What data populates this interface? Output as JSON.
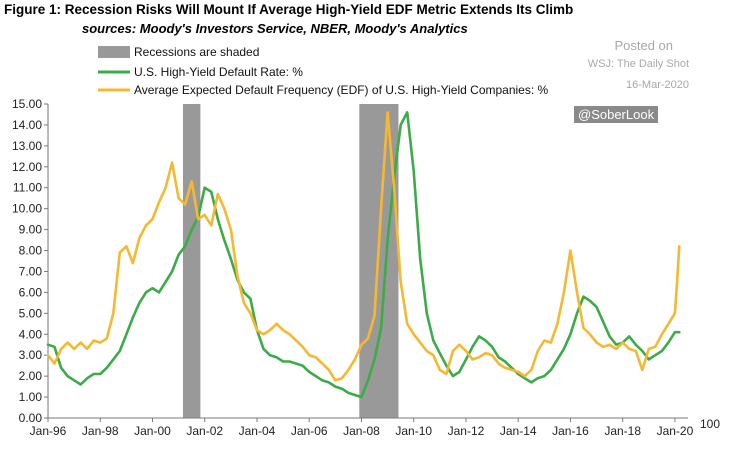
{
  "header": {
    "title": "Figure 1: Recession Risks Will Mount If Average High-Yield EDF Metric Extends Its Climb",
    "subtitle": "sources: Moody's Investors Service, NBER, Moody's Analytics"
  },
  "watermark": {
    "posted": "Posted on",
    "source": "WSJ: The Daily Shot",
    "date": "16-Mar-2020",
    "handle": "@SoberLook"
  },
  "chart_data": {
    "type": "line",
    "xlabel": "",
    "ylabel": "",
    "ylim": [
      0,
      15
    ],
    "y_ticks": [
      "0.00",
      "1.00",
      "2.00",
      "3.00",
      "4.00",
      "5.00",
      "6.00",
      "7.00",
      "8.00",
      "9.00",
      "10.00",
      "11.00",
      "12.00",
      "13.00",
      "14.00",
      "15.00"
    ],
    "x_ticks": [
      "Jan-96",
      "Jan-98",
      "Jan-00",
      "Jan-02",
      "Jan-04",
      "Jan-06",
      "Jan-08",
      "Jan-10",
      "Jan-12",
      "Jan-14",
      "Jan-16",
      "Jan-18",
      "Jan-20"
    ],
    "stray_label": "100",
    "grid": false,
    "legend": [
      {
        "label": "Recessions are shaded",
        "kind": "shade",
        "color": "#999999"
      },
      {
        "label": "U.S. High-Yield Default Rate: %",
        "kind": "line",
        "color": "#3cab48"
      },
      {
        "label": "Average Expected Default Frequency (EDF) of U.S. High-Yield Companies: %",
        "kind": "line",
        "color": "#f5b832"
      }
    ],
    "recessions": [
      {
        "start": "2001-03",
        "end": "2001-11"
      },
      {
        "start": "2007-12",
        "end": "2009-06"
      }
    ],
    "series": [
      {
        "name": "U.S. High-Yield Default Rate: %",
        "color": "#3cab48",
        "points": [
          [
            "1996-01",
            3.5
          ],
          [
            "1996-04",
            3.4
          ],
          [
            "1996-07",
            2.4
          ],
          [
            "1996-10",
            2.0
          ],
          [
            "1997-01",
            1.8
          ],
          [
            "1997-04",
            1.6
          ],
          [
            "1997-07",
            1.9
          ],
          [
            "1997-10",
            2.1
          ],
          [
            "1998-01",
            2.1
          ],
          [
            "1998-04",
            2.4
          ],
          [
            "1998-07",
            2.8
          ],
          [
            "1998-10",
            3.2
          ],
          [
            "1999-01",
            4.0
          ],
          [
            "1999-04",
            4.8
          ],
          [
            "1999-07",
            5.5
          ],
          [
            "1999-10",
            6.0
          ],
          [
            "2000-01",
            6.2
          ],
          [
            "2000-04",
            6.0
          ],
          [
            "2000-07",
            6.5
          ],
          [
            "2000-10",
            7.0
          ],
          [
            "2001-01",
            7.8
          ],
          [
            "2001-04",
            8.2
          ],
          [
            "2001-07",
            9.0
          ],
          [
            "2001-10",
            9.6
          ],
          [
            "2002-01",
            11.0
          ],
          [
            "2002-04",
            10.8
          ],
          [
            "2002-07",
            9.5
          ],
          [
            "2002-10",
            8.5
          ],
          [
            "2003-01",
            7.6
          ],
          [
            "2003-04",
            6.6
          ],
          [
            "2003-07",
            6.0
          ],
          [
            "2003-10",
            5.7
          ],
          [
            "2004-01",
            4.2
          ],
          [
            "2004-04",
            3.3
          ],
          [
            "2004-07",
            3.0
          ],
          [
            "2004-10",
            2.9
          ],
          [
            "2005-01",
            2.7
          ],
          [
            "2005-04",
            2.7
          ],
          [
            "2005-07",
            2.6
          ],
          [
            "2005-10",
            2.5
          ],
          [
            "2006-01",
            2.2
          ],
          [
            "2006-04",
            2.0
          ],
          [
            "2006-07",
            1.8
          ],
          [
            "2006-10",
            1.7
          ],
          [
            "2007-01",
            1.5
          ],
          [
            "2007-04",
            1.4
          ],
          [
            "2007-07",
            1.2
          ],
          [
            "2007-10",
            1.1
          ],
          [
            "2008-01",
            1.0
          ],
          [
            "2008-04",
            1.8
          ],
          [
            "2008-07",
            2.8
          ],
          [
            "2008-10",
            4.3
          ],
          [
            "2009-01",
            8.5
          ],
          [
            "2009-04",
            11.5
          ],
          [
            "2009-07",
            14.0
          ],
          [
            "2009-10",
            14.6
          ],
          [
            "2010-01",
            11.8
          ],
          [
            "2010-04",
            7.6
          ],
          [
            "2010-07",
            5.0
          ],
          [
            "2010-10",
            3.7
          ],
          [
            "2011-01",
            3.1
          ],
          [
            "2011-04",
            2.5
          ],
          [
            "2011-07",
            2.0
          ],
          [
            "2011-10",
            2.2
          ],
          [
            "2012-01",
            2.8
          ],
          [
            "2012-04",
            3.4
          ],
          [
            "2012-07",
            3.9
          ],
          [
            "2012-10",
            3.7
          ],
          [
            "2013-01",
            3.4
          ],
          [
            "2013-04",
            2.9
          ],
          [
            "2013-07",
            2.7
          ],
          [
            "2013-10",
            2.4
          ],
          [
            "2014-01",
            2.1
          ],
          [
            "2014-04",
            1.9
          ],
          [
            "2014-07",
            1.7
          ],
          [
            "2014-10",
            1.9
          ],
          [
            "2015-01",
            2.0
          ],
          [
            "2015-04",
            2.3
          ],
          [
            "2015-07",
            2.8
          ],
          [
            "2015-10",
            3.3
          ],
          [
            "2016-01",
            4.0
          ],
          [
            "2016-04",
            5.0
          ],
          [
            "2016-07",
            5.8
          ],
          [
            "2016-10",
            5.6
          ],
          [
            "2017-01",
            5.3
          ],
          [
            "2017-04",
            4.6
          ],
          [
            "2017-07",
            3.9
          ],
          [
            "2017-10",
            3.5
          ],
          [
            "2018-01",
            3.6
          ],
          [
            "2018-04",
            3.9
          ],
          [
            "2018-07",
            3.5
          ],
          [
            "2018-10",
            3.2
          ],
          [
            "2019-01",
            2.8
          ],
          [
            "2019-04",
            3.0
          ],
          [
            "2019-07",
            3.2
          ],
          [
            "2019-10",
            3.6
          ],
          [
            "2020-01",
            4.1
          ],
          [
            "2020-03",
            4.1
          ]
        ]
      },
      {
        "name": "Average Expected Default Frequency (EDF) of U.S. High-Yield Companies: %",
        "color": "#f5b832",
        "points": [
          [
            "1996-01",
            3.0
          ],
          [
            "1996-04",
            2.6
          ],
          [
            "1996-07",
            3.3
          ],
          [
            "1996-10",
            3.6
          ],
          [
            "1997-01",
            3.3
          ],
          [
            "1997-04",
            3.6
          ],
          [
            "1997-07",
            3.3
          ],
          [
            "1997-10",
            3.7
          ],
          [
            "1998-01",
            3.6
          ],
          [
            "1998-04",
            3.8
          ],
          [
            "1998-07",
            5.0
          ],
          [
            "1998-10",
            7.9
          ],
          [
            "1999-01",
            8.2
          ],
          [
            "1999-04",
            7.4
          ],
          [
            "1999-07",
            8.6
          ],
          [
            "1999-10",
            9.2
          ],
          [
            "2000-01",
            9.5
          ],
          [
            "2000-04",
            10.3
          ],
          [
            "2000-07",
            11.0
          ],
          [
            "2000-10",
            12.2
          ],
          [
            "2001-01",
            10.5
          ],
          [
            "2001-04",
            10.2
          ],
          [
            "2001-07",
            11.3
          ],
          [
            "2001-10",
            9.5
          ],
          [
            "2002-01",
            9.7
          ],
          [
            "2002-04",
            9.2
          ],
          [
            "2002-07",
            10.7
          ],
          [
            "2002-10",
            10.0
          ],
          [
            "2003-01",
            9.0
          ],
          [
            "2003-04",
            6.8
          ],
          [
            "2003-07",
            5.5
          ],
          [
            "2003-10",
            5.0
          ],
          [
            "2004-01",
            4.2
          ],
          [
            "2004-04",
            4.0
          ],
          [
            "2004-07",
            4.2
          ],
          [
            "2004-10",
            4.5
          ],
          [
            "2005-01",
            4.2
          ],
          [
            "2005-04",
            4.0
          ],
          [
            "2005-07",
            3.7
          ],
          [
            "2005-10",
            3.4
          ],
          [
            "2006-01",
            3.0
          ],
          [
            "2006-04",
            2.9
          ],
          [
            "2006-07",
            2.6
          ],
          [
            "2006-10",
            2.3
          ],
          [
            "2007-01",
            1.8
          ],
          [
            "2007-04",
            1.9
          ],
          [
            "2007-07",
            2.3
          ],
          [
            "2007-10",
            2.8
          ],
          [
            "2008-01",
            3.5
          ],
          [
            "2008-04",
            3.8
          ],
          [
            "2008-07",
            4.9
          ],
          [
            "2008-10",
            10.0
          ],
          [
            "2009-01",
            14.6
          ],
          [
            "2009-04",
            11.0
          ],
          [
            "2009-07",
            6.5
          ],
          [
            "2009-10",
            4.5
          ],
          [
            "2010-01",
            4.0
          ],
          [
            "2010-04",
            3.6
          ],
          [
            "2010-07",
            3.2
          ],
          [
            "2010-10",
            3.0
          ],
          [
            "2011-01",
            2.3
          ],
          [
            "2011-04",
            2.1
          ],
          [
            "2011-07",
            3.2
          ],
          [
            "2011-10",
            3.5
          ],
          [
            "2012-01",
            3.2
          ],
          [
            "2012-04",
            2.8
          ],
          [
            "2012-07",
            2.9
          ],
          [
            "2012-10",
            3.1
          ],
          [
            "2013-01",
            3.0
          ],
          [
            "2013-04",
            2.6
          ],
          [
            "2013-07",
            2.4
          ],
          [
            "2013-10",
            2.3
          ],
          [
            "2014-01",
            2.2
          ],
          [
            "2014-04",
            2.0
          ],
          [
            "2014-07",
            2.3
          ],
          [
            "2014-10",
            3.2
          ],
          [
            "2015-01",
            3.7
          ],
          [
            "2015-04",
            3.6
          ],
          [
            "2015-07",
            4.5
          ],
          [
            "2015-10",
            6.0
          ],
          [
            "2016-01",
            8.0
          ],
          [
            "2016-04",
            6.0
          ],
          [
            "2016-07",
            4.3
          ],
          [
            "2016-10",
            4.0
          ],
          [
            "2017-01",
            3.6
          ],
          [
            "2017-04",
            3.4
          ],
          [
            "2017-07",
            3.5
          ],
          [
            "2017-10",
            3.3
          ],
          [
            "2018-01",
            3.6
          ],
          [
            "2018-04",
            3.3
          ],
          [
            "2018-07",
            3.2
          ],
          [
            "2018-10",
            2.3
          ],
          [
            "2019-01",
            3.3
          ],
          [
            "2019-04",
            3.4
          ],
          [
            "2019-07",
            4.0
          ],
          [
            "2019-10",
            4.5
          ],
          [
            "2020-01",
            5.0
          ],
          [
            "2020-02",
            6.5
          ],
          [
            "2020-03",
            8.2
          ]
        ]
      }
    ]
  }
}
